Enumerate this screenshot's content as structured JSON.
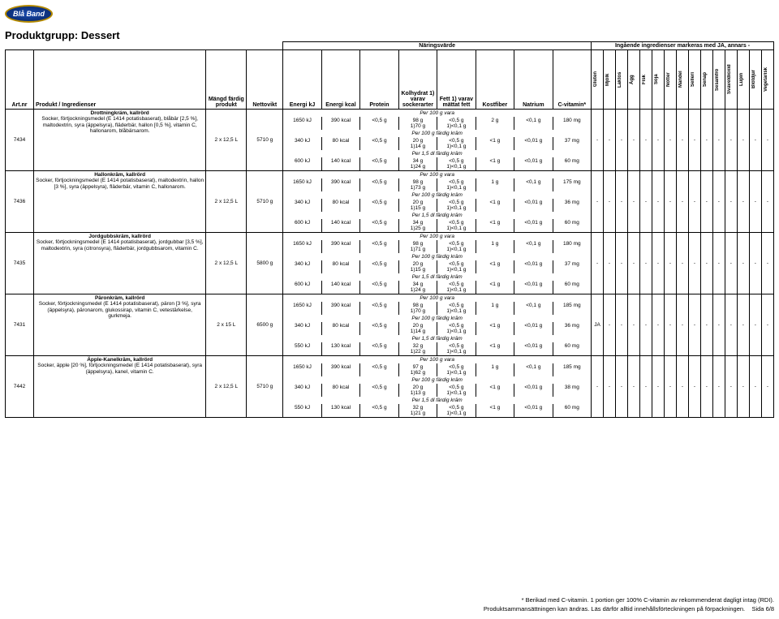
{
  "brand": "Blå Band",
  "page_title": "Produktgrupp: Dessert",
  "section_headers": {
    "nutrition": "Näringsvärde",
    "allergens": "Ingående ingredienser markeras med JA, annars -"
  },
  "column_headers": {
    "art": "Art.nr",
    "product": "Produkt / Ingredienser",
    "qty": "Mängd färdig produkt",
    "net": "Nettovikt",
    "ekj": "Energi kJ",
    "ekcal": "Energi kcal",
    "protein": "Protein",
    "carb": "Kolhydrat 1) varav sockerarter",
    "fat": "Fett 1) varav mättat fett",
    "fiber": "Kostfiber",
    "sodium": "Natrium",
    "vitc": "C-vitamin*"
  },
  "allergen_headers": [
    "Gluten",
    "Mjölk",
    "Laktos",
    "Ägg",
    "Fisk",
    "Soja",
    "Nötter",
    "Mandel",
    "Selleri",
    "Senap",
    "Sesamfrö",
    "Svaveldioxid",
    "Lupin",
    "Blötdjur",
    "Vegetarisk"
  ],
  "per_labels": {
    "vara": "Per 100 g vara",
    "kram100": "Per 100 g färdig kräm",
    "kram15": "Per 1,5 dl färdig kräm"
  },
  "products": [
    {
      "art": "7434",
      "name": "Drottningkräm, kallrörd",
      "ingredients": "Socker, förtjockningsmedel (E 1414 potatisbaserat), blåbär [2,5 %], maltodextrin, syra (äppelsyra), fläderbär, hallon [0,5 %], vitamin C, hallonarom, blåbärsarom.",
      "qty": "2 x 12,5 L",
      "net": "5710 g",
      "rows": [
        {
          "label": "vara",
          "ekj": "1650 kJ",
          "ekcal": "390 kcal",
          "prot": "<0,5 g",
          "carb": "98 g",
          "carb2": "1)70 g",
          "fat": "<0,5 g",
          "fat2": "1)<0,1 g",
          "fib": "2 g",
          "na": "<0,1 g",
          "vc": "180 mg"
        },
        {
          "label": "kram100",
          "ekj": "340 kJ",
          "ekcal": "80 kcal",
          "prot": "<0,5 g",
          "carb": "20 g",
          "carb2": "1)14 g",
          "fat": "<0,5 g",
          "fat2": "1)<0,1 g",
          "fib": "<1 g",
          "na": "<0,01 g",
          "vc": "37 mg"
        },
        {
          "label": "kram15",
          "ekj": "600 kJ",
          "ekcal": "140 kcal",
          "prot": "<0,5 g",
          "carb": "34 g",
          "carb2": "1)24 g",
          "fat": "<0,5 g",
          "fat2": "1)<0,1 g",
          "fib": "<1 g",
          "na": "<0,01 g",
          "vc": "60 mg"
        }
      ],
      "allergens": [
        "-",
        "-",
        "-",
        "-",
        "-",
        "-",
        "-",
        "-",
        "-",
        "-",
        "-",
        "-",
        "-",
        "-",
        "-"
      ]
    },
    {
      "art": "7436",
      "name": "Hallonkräm, kallrörd",
      "ingredients": "Socker, förtjockningsmedel (E 1414 potatisbaserat), maltodextrin, hallon [3 %], syra (äppelsyra), fläderbär, vitamin C, hallonarom.",
      "qty": "2 x 12,5 L",
      "net": "5710 g",
      "rows": [
        {
          "label": "vara",
          "ekj": "1650 kJ",
          "ekcal": "390 kcal",
          "prot": "<0,5 g",
          "carb": "98 g",
          "carb2": "1)73 g",
          "fat": "<0,5 g",
          "fat2": "1)<0,1 g",
          "fib": "1 g",
          "na": "<0,1 g",
          "vc": "175 mg"
        },
        {
          "label": "kram100",
          "ekj": "340 kJ",
          "ekcal": "80 kcal",
          "prot": "<0,5 g",
          "carb": "20 g",
          "carb2": "1)15 g",
          "fat": "<0,5 g",
          "fat2": "1)<0,1 g",
          "fib": "<1 g",
          "na": "<0,01 g",
          "vc": "36 mg"
        },
        {
          "label": "kram15",
          "ekj": "600 kJ",
          "ekcal": "140 kcal",
          "prot": "<0,5 g",
          "carb": "34 g",
          "carb2": "1)25 g",
          "fat": "<0,5 g",
          "fat2": "1)<0,1 g",
          "fib": "<1 g",
          "na": "<0,01 g",
          "vc": "60 mg"
        }
      ],
      "allergens": [
        "-",
        "-",
        "-",
        "-",
        "-",
        "-",
        "-",
        "-",
        "-",
        "-",
        "-",
        "-",
        "-",
        "-",
        "-"
      ]
    },
    {
      "art": "7435",
      "name": "Jordgubbskräm, kallrörd",
      "ingredients": "Socker, förtjockningsmedel (E 1414 potatisbaserat), jordgubbar [3,5 %], maltodextrin, syra (citronsyra), fläderbär, jordgubbsarom, vitamin C.",
      "qty": "2 x 12,5 L",
      "net": "5800 g",
      "rows": [
        {
          "label": "vara",
          "ekj": "1650 kJ",
          "ekcal": "390 kcal",
          "prot": "<0,5 g",
          "carb": "98 g",
          "carb2": "1)71 g",
          "fat": "<0,5 g",
          "fat2": "1)<0,1 g",
          "fib": "1 g",
          "na": "<0,1 g",
          "vc": "180 mg"
        },
        {
          "label": "kram100",
          "ekj": "340 kJ",
          "ekcal": "80 kcal",
          "prot": "<0,5 g",
          "carb": "20 g",
          "carb2": "1)15 g",
          "fat": "<0,5 g",
          "fat2": "1)<0,1 g",
          "fib": "<1 g",
          "na": "<0,01 g",
          "vc": "37 mg"
        },
        {
          "label": "kram15",
          "ekj": "600 kJ",
          "ekcal": "140 kcal",
          "prot": "<0,5 g",
          "carb": "34 g",
          "carb2": "1)24 g",
          "fat": "<0,5 g",
          "fat2": "1)<0,1 g",
          "fib": "<1 g",
          "na": "<0,01 g",
          "vc": "60 mg"
        }
      ],
      "allergens": [
        "-",
        "-",
        "-",
        "-",
        "-",
        "-",
        "-",
        "-",
        "-",
        "-",
        "-",
        "-",
        "-",
        "-",
        "-"
      ]
    },
    {
      "art": "7431",
      "name": "Päronkräm, kallrörd",
      "ingredients": "Socker, förtjockningsmedel (E 1414 potatisbaserat), päron [3 %], syra (äppelsyra), päronarom, glukossirap, vitamin C, vetestärkelse, gurkmeja.",
      "qty": "2 x 15 L",
      "net": "6500 g",
      "rows": [
        {
          "label": "vara",
          "ekj": "1650 kJ",
          "ekcal": "390 kcal",
          "prot": "<0,5 g",
          "carb": "98 g",
          "carb2": "1)70 g",
          "fat": "<0,5 g",
          "fat2": "1)<0,1 g",
          "fib": "1 g",
          "na": "<0,1 g",
          "vc": "185 mg"
        },
        {
          "label": "kram100",
          "ekj": "340 kJ",
          "ekcal": "80 kcal",
          "prot": "<0,5 g",
          "carb": "20 g",
          "carb2": "1)14 g",
          "fat": "<0,5 g",
          "fat2": "1)<0,1 g",
          "fib": "<1 g",
          "na": "<0,01 g",
          "vc": "36 mg"
        },
        {
          "label": "kram15",
          "ekj": "550 kJ",
          "ekcal": "130 kcal",
          "prot": "<0,5 g",
          "carb": "32 g",
          "carb2": "1)22 g",
          "fat": "<0,5 g",
          "fat2": "1)<0,1 g",
          "fib": "<1 g",
          "na": "<0,01 g",
          "vc": "60 mg"
        }
      ],
      "allergens": [
        "JA",
        "-",
        "-",
        "-",
        "-",
        "-",
        "-",
        "-",
        "-",
        "-",
        "-",
        "-",
        "-",
        "-",
        "-"
      ]
    },
    {
      "art": "7442",
      "name": "Äpple-Kanelkräm, kallrörd",
      "ingredients": "Socker, äpple [20 %], förtjockningsmedel (E 1414 potatisbaserat), syra (äppelsyra), kanel, vitamin C.",
      "qty": "2 x 12,5 L",
      "net": "5710 g",
      "rows": [
        {
          "label": "vara",
          "ekj": "1650 kJ",
          "ekcal": "390 kcal",
          "prot": "<0,5 g",
          "carb": "97 g",
          "carb2": "1)62 g",
          "fat": "<0,5 g",
          "fat2": "1)<0,1 g",
          "fib": "1 g",
          "na": "<0,1 g",
          "vc": "185 mg"
        },
        {
          "label": "kram100",
          "ekj": "340 kJ",
          "ekcal": "80 kcal",
          "prot": "<0,5 g",
          "carb": "20 g",
          "carb2": "1)13 g",
          "fat": "<0,5 g",
          "fat2": "1)<0,1 g",
          "fib": "<1 g",
          "na": "<0,01 g",
          "vc": "38 mg"
        },
        {
          "label": "kram15",
          "ekj": "550 kJ",
          "ekcal": "130 kcal",
          "prot": "<0,5 g",
          "carb": "32 g",
          "carb2": "1)21 g",
          "fat": "<0,5 g",
          "fat2": "1)<0,1 g",
          "fib": "<1 g",
          "na": "<0,01 g",
          "vc": "60 mg"
        }
      ],
      "allergens": [
        "-",
        "-",
        "-",
        "-",
        "-",
        "-",
        "-",
        "-",
        "-",
        "-",
        "-",
        "-",
        "-",
        "-",
        "-"
      ]
    }
  ],
  "footnotes": {
    "vitc": "* Berikad med C-vitamin. 1 portion ger 100% C-vitamin av rekommenderat dagligt intag (RDI).",
    "change": "Produktsammansättningen kan ändras. Läs därför alltid innehållsförteckningen på förpackningen.",
    "page": "Sida 6/8"
  }
}
